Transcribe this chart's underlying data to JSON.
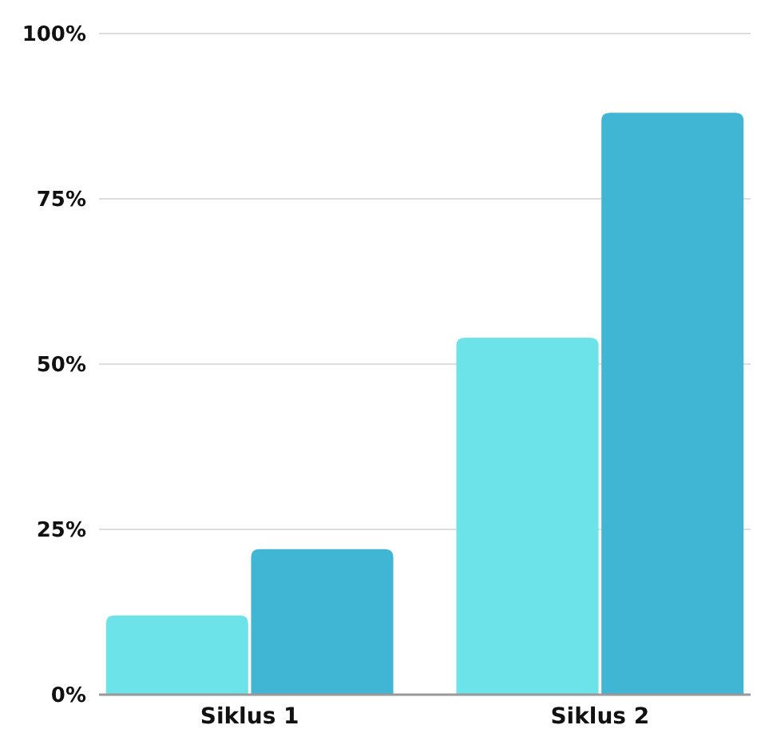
{
  "chart_data": {
    "type": "bar",
    "categories": [
      "Siklus 1",
      "Siklus 2"
    ],
    "series": [
      {
        "color": "#6ce3e8",
        "values": [
          12,
          54
        ]
      },
      {
        "color": "#40b5d4",
        "values": [
          22,
          88
        ]
      }
    ],
    "ylim": [
      0,
      100
    ],
    "yticks": [
      {
        "value": 0,
        "label": "0%"
      },
      {
        "value": 25,
        "label": "25%"
      },
      {
        "value": 50,
        "label": "50%"
      },
      {
        "value": 75,
        "label": "75%"
      },
      {
        "value": 100,
        "label": "100%"
      }
    ],
    "grid": "y"
  }
}
